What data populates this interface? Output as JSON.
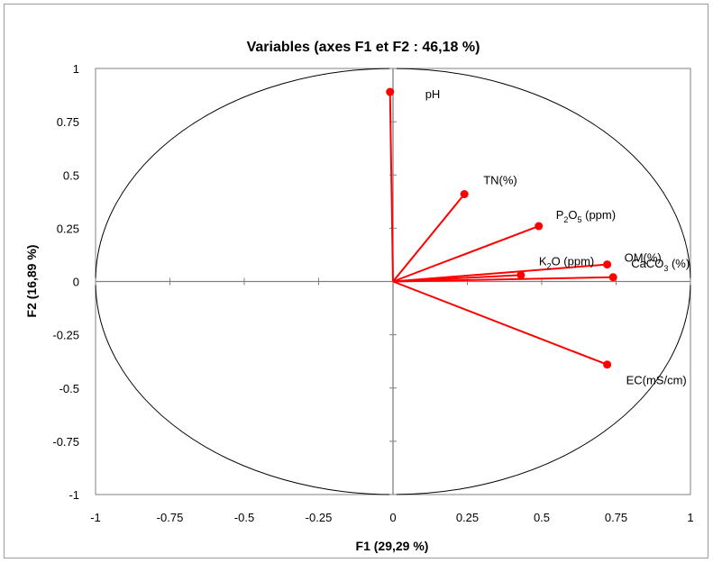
{
  "chart_data": {
    "type": "scatter",
    "subtype": "pca-correlation-circle",
    "title": "Variables (axes F1 et F2 : 46,18 %)",
    "xlabel": "F1 (29,29 %)",
    "ylabel": "F2 (16,89 %)",
    "xlim": [
      -1,
      1
    ],
    "ylim": [
      -1,
      1
    ],
    "x_ticks": [
      "-1",
      "-0.75",
      "-0.5",
      "-0.25",
      "0",
      "0.25",
      "0.5",
      "0.75",
      "1"
    ],
    "y_ticks": [
      "1",
      "0.75",
      "0.5",
      "0.25",
      "0",
      "-0.25",
      "-0.5",
      "-0.75",
      "-1"
    ],
    "vector_color": "#ff0000",
    "circle_color": "#000000",
    "grid": false,
    "variables": [
      {
        "name": "pH",
        "x": -0.01,
        "y": 0.89
      },
      {
        "name": "TN(%)",
        "x": 0.24,
        "y": 0.41
      },
      {
        "name": "P2O5 (ppm)",
        "x": 0.49,
        "y": 0.26,
        "base": "P",
        "sub1": "2",
        "mid": "O",
        "sub2": "5",
        "rest": " (ppm)"
      },
      {
        "name": "OM(%)",
        "x": 0.72,
        "y": 0.08
      },
      {
        "name": "CaCO3 (%)",
        "x": 0.74,
        "y": 0.02,
        "base": "CaCO",
        "sub1": "3",
        "rest": " (%)"
      },
      {
        "name": "K2O (ppm)",
        "x": 0.43,
        "y": 0.03,
        "base": "K",
        "sub1": "2",
        "rest": "O (ppm)"
      },
      {
        "name": "EC(mS/cm)",
        "x": 0.72,
        "y": -0.39
      }
    ]
  }
}
